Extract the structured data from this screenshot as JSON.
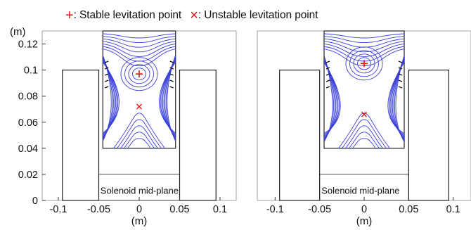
{
  "legend": {
    "stable_symbol": "+",
    "stable_label": ": Stable levitation point",
    "unstable_symbol": "×",
    "unstable_label": ": Unstable levitation point"
  },
  "colors": {
    "field_lines": "#3a3fd8",
    "marker": "#e01010",
    "structure": "#222222",
    "frame": "#888888"
  },
  "chart_data": [
    {
      "type": "diagram",
      "xlabel": "(m)",
      "ylabel": "(m)",
      "xlim": [
        -0.12,
        0.12
      ],
      "ylim": [
        0,
        0.13
      ],
      "xticks": [
        "-0.1",
        "-0.05",
        "0",
        "0.05",
        "0.1"
      ],
      "yticks": [
        "0",
        "0.02",
        "0.04",
        "0.06",
        "0.08",
        "0.1",
        "0.12"
      ],
      "xtick_values": [
        -0.1,
        -0.05,
        0,
        0.05,
        0.1
      ],
      "ytick_values": [
        0,
        0.02,
        0.04,
        0.06,
        0.08,
        0.1,
        0.12
      ],
      "coils": [
        {
          "x0": -0.095,
          "x1": -0.05,
          "y0": 0,
          "y1": 0.1
        },
        {
          "x0": 0.05,
          "x1": 0.095,
          "y0": 0,
          "y1": 0.1
        }
      ],
      "field_region": {
        "x0": -0.045,
        "x1": 0.045,
        "y0": 0.04,
        "y1": 0.13
      },
      "stable_point": [
        0.0,
        0.097
      ],
      "unstable_point": [
        0.0,
        0.072
      ],
      "annotation": "Solenoid mid-plane"
    },
    {
      "type": "diagram",
      "xlabel": "(m)",
      "ylabel": "",
      "xlim": [
        -0.12,
        0.12
      ],
      "ylim": [
        0,
        0.13
      ],
      "xticks": [
        "-0.1",
        "-0.05",
        "0",
        "0.05",
        "0.1"
      ],
      "yticks": [],
      "xtick_values": [
        -0.1,
        -0.05,
        0,
        0.05,
        0.1
      ],
      "ytick_values": [],
      "coils": [
        {
          "x0": -0.095,
          "x1": -0.05,
          "y0": 0,
          "y1": 0.1
        },
        {
          "x0": 0.05,
          "x1": 0.095,
          "y0": 0,
          "y1": 0.1
        }
      ],
      "field_region": {
        "x0": -0.045,
        "x1": 0.045,
        "y0": 0.04,
        "y1": 0.13
      },
      "stable_point": [
        0.0,
        0.105
      ],
      "unstable_point": [
        0.0,
        0.066
      ],
      "annotation": "Solenoid mid-plane"
    }
  ]
}
